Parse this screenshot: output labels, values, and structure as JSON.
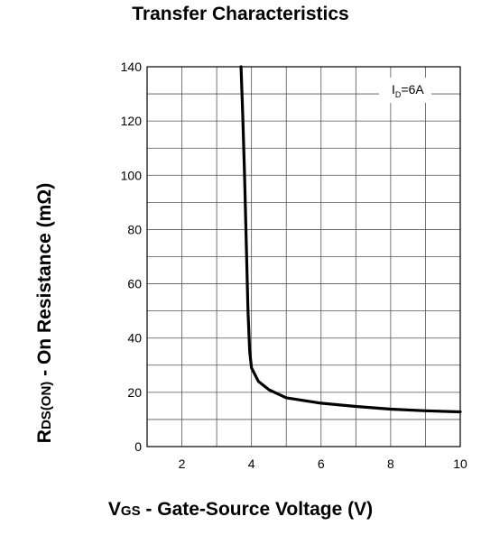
{
  "chart_data": {
    "type": "line",
    "title": "Transfer Characteristics",
    "ylabel": {
      "main": "R",
      "sub": "DS(ON)",
      "rest": " - On Resistance (mΩ)"
    },
    "xlabel": {
      "main": "V",
      "sub": "GS",
      "rest": " - Gate-Source Voltage (V)"
    },
    "xlim": [
      1,
      10
    ],
    "ylim": [
      0,
      140
    ],
    "xticks": [
      2,
      4,
      6,
      8,
      10
    ],
    "yticks": [
      0,
      20,
      40,
      60,
      80,
      100,
      120,
      140
    ],
    "grid": true,
    "annotation": {
      "main": "I",
      "sub": "D",
      "rest": "=6A"
    },
    "series": [
      {
        "color": "#000000",
        "x": [
          3.7,
          3.75,
          3.8,
          3.85,
          3.9,
          3.95,
          4.0,
          4.2,
          4.5,
          5.0,
          5.5,
          6.0,
          7.0,
          8.0,
          9.0,
          10.0
        ],
        "y": [
          140,
          122,
          100,
          75,
          50,
          35,
          29,
          24,
          21,
          18,
          17,
          16,
          14.8,
          13.8,
          13.2,
          12.8
        ]
      }
    ]
  }
}
